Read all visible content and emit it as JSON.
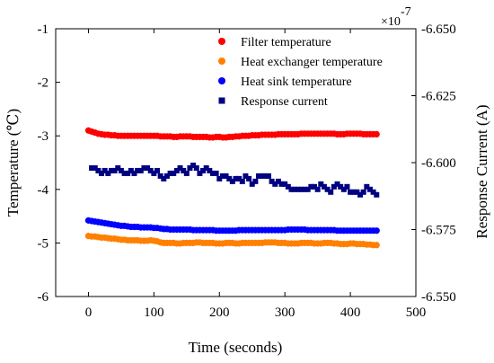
{
  "chart_data": {
    "type": "scatter",
    "xlabel": "Time (seconds)",
    "ylabel_left": "Temperature (℃)",
    "ylabel_right": "Response Current (A)",
    "right_axis_multiplier": "×10",
    "right_axis_exponent": "-7",
    "xlim": [
      -50,
      500
    ],
    "ylim_left": [
      -6,
      -1
    ],
    "ylim_right": [
      -6.55,
      -6.65
    ],
    "x_ticks": [
      0,
      100,
      200,
      300,
      400,
      500
    ],
    "x_tick_labels": [
      "0",
      "100",
      "200",
      "300",
      "400",
      "500"
    ],
    "y_left_ticks": [
      -6,
      -5,
      -4,
      -3,
      -2,
      -1
    ],
    "y_left_tick_labels": [
      "-6",
      "-5",
      "-4",
      "-3",
      "-2",
      "-1"
    ],
    "y_right_ticks": [
      -6.55,
      -6.575,
      -6.6,
      -6.625,
      -6.65
    ],
    "y_right_tick_labels": [
      "-6.550",
      "-6.575",
      "-6.600",
      "-6.625",
      "-6.650"
    ],
    "grid": false,
    "legend_position": "top-right",
    "series": [
      {
        "name": "Filter temperature",
        "color": "#ff0000",
        "marker": "circle",
        "axis": "left",
        "x": [
          0,
          5,
          10,
          15,
          20,
          25,
          30,
          35,
          40,
          45,
          50,
          55,
          60,
          65,
          70,
          75,
          80,
          85,
          90,
          95,
          100,
          105,
          110,
          115,
          120,
          125,
          130,
          135,
          140,
          145,
          150,
          155,
          160,
          165,
          170,
          175,
          180,
          185,
          190,
          195,
          200,
          205,
          210,
          215,
          220,
          225,
          230,
          235,
          240,
          245,
          250,
          255,
          260,
          265,
          270,
          275,
          280,
          285,
          290,
          295,
          300,
          305,
          310,
          315,
          320,
          325,
          330,
          335,
          340,
          345,
          350,
          355,
          360,
          365,
          370,
          375,
          380,
          385,
          390,
          395,
          400,
          405,
          410,
          415,
          420,
          425,
          430,
          435,
          440
        ],
        "y": [
          -2.9,
          -2.92,
          -2.94,
          -2.96,
          -2.97,
          -2.98,
          -2.98,
          -2.99,
          -2.99,
          -3.0,
          -3.0,
          -3.0,
          -3.0,
          -3.0,
          -3.0,
          -3.0,
          -3.0,
          -3.0,
          -3.0,
          -3.0,
          -3.0,
          -3.0,
          -3.01,
          -3.01,
          -3.01,
          -3.01,
          -3.02,
          -3.02,
          -3.01,
          -3.01,
          -3.01,
          -3.01,
          -3.02,
          -3.02,
          -3.02,
          -3.02,
          -3.02,
          -3.03,
          -3.03,
          -3.02,
          -3.02,
          -3.03,
          -3.03,
          -3.02,
          -3.02,
          -3.01,
          -3.01,
          -3.0,
          -3.0,
          -3.0,
          -2.99,
          -2.99,
          -2.99,
          -2.98,
          -2.98,
          -2.98,
          -2.98,
          -2.98,
          -2.97,
          -2.97,
          -2.97,
          -2.97,
          -2.97,
          -2.97,
          -2.97,
          -2.96,
          -2.96,
          -2.96,
          -2.96,
          -2.96,
          -2.96,
          -2.96,
          -2.96,
          -2.96,
          -2.96,
          -2.96,
          -2.97,
          -2.97,
          -2.97,
          -2.96,
          -2.96,
          -2.96,
          -2.96,
          -2.96,
          -2.97,
          -2.97,
          -2.97,
          -2.97,
          -2.97
        ]
      },
      {
        "name": "Heat exchanger temperature",
        "color": "#ff8000",
        "marker": "circle",
        "axis": "left",
        "x": [
          0,
          5,
          10,
          15,
          20,
          25,
          30,
          35,
          40,
          45,
          50,
          55,
          60,
          65,
          70,
          75,
          80,
          85,
          90,
          95,
          100,
          105,
          110,
          115,
          120,
          125,
          130,
          135,
          140,
          145,
          150,
          155,
          160,
          165,
          170,
          175,
          180,
          185,
          190,
          195,
          200,
          205,
          210,
          215,
          220,
          225,
          230,
          235,
          240,
          245,
          250,
          255,
          260,
          265,
          270,
          275,
          280,
          285,
          290,
          295,
          300,
          305,
          310,
          315,
          320,
          325,
          330,
          335,
          340,
          345,
          350,
          355,
          360,
          365,
          370,
          375,
          380,
          385,
          390,
          395,
          400,
          405,
          410,
          415,
          420,
          425,
          430,
          435,
          440
        ],
        "y": [
          -4.87,
          -4.88,
          -4.88,
          -4.89,
          -4.9,
          -4.9,
          -4.91,
          -4.92,
          -4.92,
          -4.93,
          -4.94,
          -4.94,
          -4.95,
          -4.95,
          -4.95,
          -4.95,
          -4.96,
          -4.96,
          -4.96,
          -4.95,
          -4.96,
          -4.97,
          -4.99,
          -5.0,
          -5.0,
          -5.0,
          -5.0,
          -5.01,
          -5.01,
          -5.0,
          -5.0,
          -5.0,
          -5.0,
          -4.99,
          -4.99,
          -5.0,
          -5.0,
          -5.0,
          -5.0,
          -5.01,
          -5.01,
          -5.01,
          -5.0,
          -5.0,
          -5.0,
          -5.01,
          -5.01,
          -5.0,
          -5.0,
          -5.0,
          -5.0,
          -5.0,
          -5.0,
          -5.0,
          -4.99,
          -4.99,
          -4.99,
          -4.99,
          -5.0,
          -5.0,
          -5.0,
          -5.01,
          -5.01,
          -5.01,
          -5.01,
          -5.0,
          -5.0,
          -5.0,
          -5.0,
          -5.01,
          -5.01,
          -5.01,
          -5.0,
          -5.0,
          -5.0,
          -5.01,
          -5.01,
          -5.02,
          -5.02,
          -5.02,
          -5.01,
          -5.01,
          -5.02,
          -5.02,
          -5.02,
          -5.03,
          -5.03,
          -5.04,
          -5.04
        ]
      },
      {
        "name": "Heat sink temperature",
        "color": "#0000ff",
        "marker": "circle",
        "axis": "left",
        "x": [
          0,
          5,
          10,
          15,
          20,
          25,
          30,
          35,
          40,
          45,
          50,
          55,
          60,
          65,
          70,
          75,
          80,
          85,
          90,
          95,
          100,
          105,
          110,
          115,
          120,
          125,
          130,
          135,
          140,
          145,
          150,
          155,
          160,
          165,
          170,
          175,
          180,
          185,
          190,
          195,
          200,
          205,
          210,
          215,
          220,
          225,
          230,
          235,
          240,
          245,
          250,
          255,
          260,
          265,
          270,
          275,
          280,
          285,
          290,
          295,
          300,
          305,
          310,
          315,
          320,
          325,
          330,
          335,
          340,
          345,
          350,
          355,
          360,
          365,
          370,
          375,
          380,
          385,
          390,
          395,
          400,
          405,
          410,
          415,
          420,
          425,
          430,
          435,
          440
        ],
        "y": [
          -4.58,
          -4.59,
          -4.6,
          -4.61,
          -4.62,
          -4.63,
          -4.64,
          -4.65,
          -4.66,
          -4.67,
          -4.68,
          -4.68,
          -4.69,
          -4.7,
          -4.7,
          -4.7,
          -4.71,
          -4.71,
          -4.71,
          -4.71,
          -4.72,
          -4.72,
          -4.73,
          -4.74,
          -4.74,
          -4.75,
          -4.75,
          -4.75,
          -4.75,
          -4.75,
          -4.75,
          -4.75,
          -4.76,
          -4.76,
          -4.76,
          -4.76,
          -4.76,
          -4.76,
          -4.76,
          -4.77,
          -4.77,
          -4.77,
          -4.77,
          -4.77,
          -4.77,
          -4.77,
          -4.76,
          -4.76,
          -4.76,
          -4.76,
          -4.76,
          -4.76,
          -4.76,
          -4.76,
          -4.76,
          -4.76,
          -4.76,
          -4.76,
          -4.76,
          -4.76,
          -4.76,
          -4.75,
          -4.75,
          -4.75,
          -4.75,
          -4.75,
          -4.75,
          -4.76,
          -4.76,
          -4.76,
          -4.76,
          -4.76,
          -4.76,
          -4.76,
          -4.76,
          -4.76,
          -4.77,
          -4.77,
          -4.77,
          -4.77,
          -4.77,
          -4.77,
          -4.77,
          -4.77,
          -4.77,
          -4.77,
          -4.77,
          -4.77,
          -4.77
        ]
      },
      {
        "name": "Response current",
        "color": "#000080",
        "marker": "square",
        "axis": "right",
        "x": [
          5,
          10,
          15,
          20,
          25,
          30,
          35,
          40,
          45,
          50,
          55,
          60,
          65,
          70,
          75,
          80,
          85,
          90,
          95,
          100,
          105,
          110,
          115,
          120,
          125,
          130,
          135,
          140,
          145,
          150,
          155,
          160,
          165,
          170,
          175,
          180,
          185,
          190,
          195,
          200,
          205,
          210,
          215,
          220,
          225,
          230,
          235,
          240,
          245,
          250,
          255,
          260,
          265,
          270,
          275,
          280,
          285,
          290,
          295,
          300,
          305,
          310,
          315,
          320,
          325,
          330,
          335,
          340,
          345,
          350,
          355,
          360,
          365,
          370,
          375,
          380,
          385,
          390,
          395,
          400,
          405,
          410,
          415,
          420,
          425,
          430,
          435,
          440
        ],
        "y": [
          -6.598,
          -6.598,
          -6.597,
          -6.596,
          -6.597,
          -6.596,
          -6.597,
          -6.597,
          -6.598,
          -6.597,
          -6.596,
          -6.596,
          -6.597,
          -6.596,
          -6.597,
          -6.597,
          -6.598,
          -6.598,
          -6.597,
          -6.596,
          -6.597,
          -6.595,
          -6.594,
          -6.595,
          -6.596,
          -6.596,
          -6.597,
          -6.598,
          -6.597,
          -6.596,
          -6.598,
          -6.599,
          -6.598,
          -6.596,
          -6.597,
          -6.598,
          -6.597,
          -6.596,
          -6.596,
          -6.594,
          -6.595,
          -6.595,
          -6.594,
          -6.593,
          -6.594,
          -6.594,
          -6.593,
          -6.595,
          -6.594,
          -6.592,
          -6.593,
          -6.595,
          -6.595,
          -6.595,
          -6.595,
          -6.593,
          -6.592,
          -6.593,
          -6.592,
          -6.592,
          -6.591,
          -6.59,
          -6.59,
          -6.59,
          -6.59,
          -6.59,
          -6.59,
          -6.591,
          -6.591,
          -6.59,
          -6.592,
          -6.591,
          -6.59,
          -6.589,
          -6.591,
          -6.592,
          -6.591,
          -6.59,
          -6.591,
          -6.589,
          -6.589,
          -6.589,
          -6.588,
          -6.589,
          -6.591,
          -6.59,
          -6.589,
          -6.588
        ]
      }
    ]
  }
}
